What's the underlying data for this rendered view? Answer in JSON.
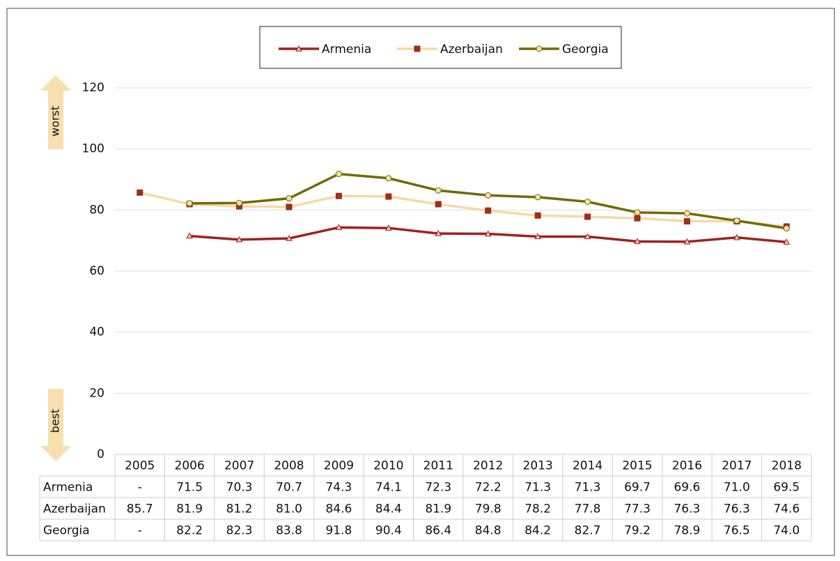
{
  "chart_data": {
    "type": "line",
    "categories": [
      "2005",
      "2006",
      "2007",
      "2008",
      "2009",
      "2010",
      "2011",
      "2012",
      "2013",
      "2014",
      "2015",
      "2016",
      "2017",
      "2018"
    ],
    "series": [
      {
        "name": "Armenia",
        "color": "#a31f1f",
        "marker": "triangle",
        "marker_fill": "#f2c9a8",
        "values": [
          null,
          71.5,
          70.3,
          70.7,
          74.3,
          74.1,
          72.3,
          72.2,
          71.3,
          71.3,
          69.7,
          69.6,
          71.0,
          69.5
        ],
        "value_labels": [
          "-",
          "71.5",
          "70.3",
          "70.7",
          "74.3",
          "74.1",
          "72.3",
          "72.2",
          "71.3",
          "71.3",
          "69.7",
          "69.6",
          "71.0",
          "69.5"
        ]
      },
      {
        "name": "Azerbaijan",
        "color": "#f5d9a6",
        "marker": "square",
        "marker_fill": "#9e2e18",
        "values": [
          85.7,
          81.9,
          81.2,
          81.0,
          84.6,
          84.4,
          81.9,
          79.8,
          78.2,
          77.8,
          77.3,
          76.3,
          76.3,
          74.6
        ],
        "value_labels": [
          "85.7",
          "81.9",
          "81.2",
          "81.0",
          "84.6",
          "84.4",
          "81.9",
          "79.8",
          "78.2",
          "77.8",
          "77.3",
          "76.3",
          "76.3",
          "74.6"
        ]
      },
      {
        "name": "Georgia",
        "color": "#706b00",
        "marker": "circle",
        "marker_fill": "#f1e2a4",
        "values": [
          null,
          82.2,
          82.3,
          83.8,
          91.8,
          90.4,
          86.4,
          84.8,
          84.2,
          82.7,
          79.2,
          78.9,
          76.5,
          74.0
        ],
        "value_labels": [
          "-",
          "82.2",
          "82.3",
          "83.8",
          "91.8",
          "90.4",
          "86.4",
          "84.8",
          "84.2",
          "82.7",
          "79.2",
          "78.9",
          "76.5",
          "74.0"
        ]
      }
    ],
    "ylim": [
      0,
      120
    ],
    "yticks": [
      0,
      20,
      40,
      60,
      80,
      100,
      120
    ],
    "grid": true,
    "annotations": [
      "worst",
      "best"
    ],
    "legend": "top"
  }
}
